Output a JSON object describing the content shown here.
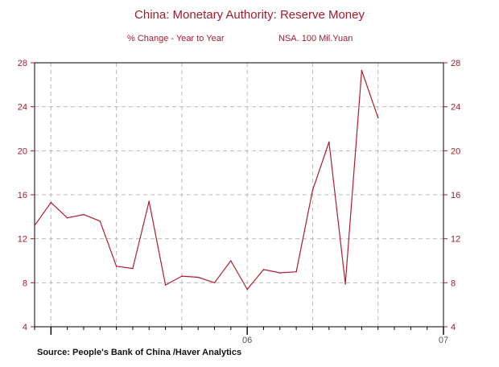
{
  "chart_data": {
    "type": "line",
    "title": "China: Monetary Authority: Reserve Money",
    "subtitle_left": "% Change - Year to Year",
    "subtitle_right": "NSA. 100 Mil.Yuan",
    "source": "Source:  People's Bank of China /Haver Analytics",
    "ylim": [
      4,
      28
    ],
    "yticks": [
      4,
      8,
      12,
      16,
      20,
      24,
      28
    ],
    "xlim": [
      "2004-12",
      "2007-01"
    ],
    "xtick_labels": [
      {
        "label": "06",
        "at": "2006-01"
      },
      {
        "label": "07",
        "at": "2007-01"
      }
    ],
    "grid": true,
    "colors": {
      "series": "#b01c2e",
      "axis": "#a01c2c",
      "grid": "#bbbbbb"
    },
    "series": [
      {
        "x": [
          "2004-12",
          "2005-01",
          "2005-02",
          "2005-03",
          "2005-04",
          "2005-05",
          "2005-06",
          "2005-07",
          "2005-08",
          "2005-09",
          "2005-10",
          "2005-11",
          "2005-12",
          "2006-01",
          "2006-02",
          "2006-03",
          "2006-04",
          "2006-05",
          "2006-06",
          "2006-07",
          "2006-08",
          "2006-09"
        ],
        "values": [
          13.2,
          15.3,
          13.9,
          14.2,
          13.6,
          9.5,
          9.3,
          15.4,
          7.8,
          8.6,
          8.5,
          8.0,
          10.0,
          7.4,
          9.2,
          8.9,
          9.0,
          16.4,
          20.8,
          7.9,
          27.3,
          23.0
        ]
      }
    ]
  }
}
